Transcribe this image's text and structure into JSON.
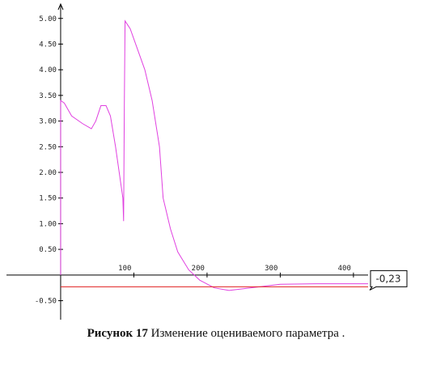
{
  "chart_data": {
    "type": "line",
    "x": [
      0,
      0,
      5,
      15,
      30,
      42,
      48,
      55,
      62,
      68,
      75,
      82,
      85,
      86,
      87,
      88,
      95,
      105,
      115,
      125,
      135,
      140,
      150,
      160,
      175,
      190,
      210,
      230,
      260,
      300,
      350,
      420
    ],
    "series": [
      {
        "color": "#e040e0",
        "values": [
          0,
          3.4,
          3.35,
          3.1,
          2.95,
          2.85,
          3.0,
          3.3,
          3.3,
          3.1,
          2.5,
          1.8,
          1.5,
          1.05,
          3.3,
          4.95,
          4.8,
          4.4,
          4.0,
          3.4,
          2.5,
          1.5,
          0.9,
          0.45,
          0.1,
          -0.1,
          -0.25,
          -0.3,
          -0.25,
          -0.18,
          -0.17,
          -0.17
        ]
      }
    ],
    "xlim": [
      -74,
      420
    ],
    "ylim": [
      -0.87,
      5.28
    ],
    "xticks": [
      100,
      200,
      300,
      400
    ],
    "yticks": [
      {
        "value": -0.5,
        "label": "-0.50"
      },
      {
        "value": 0.5,
        "label": "0.50"
      },
      {
        "value": 1,
        "label": "1.00"
      },
      {
        "value": 1.5,
        "label": "1.50"
      },
      {
        "value": 2,
        "label": "2.00"
      },
      {
        "value": 2.5,
        "label": "2.50"
      },
      {
        "value": 3,
        "label": "3.00"
      },
      {
        "value": 3.5,
        "label": "3.50"
      },
      {
        "value": 4,
        "label": "4.00"
      },
      {
        "value": 4.5,
        "label": "4.50"
      },
      {
        "value": 5,
        "label": "5.00"
      }
    ],
    "annotation": {
      "value": -0.23,
      "label": "-0,23",
      "color": "#e02020"
    }
  },
  "caption": {
    "label": "Рисунок 17",
    "text": "Изменение оцениваемого параметра ."
  }
}
